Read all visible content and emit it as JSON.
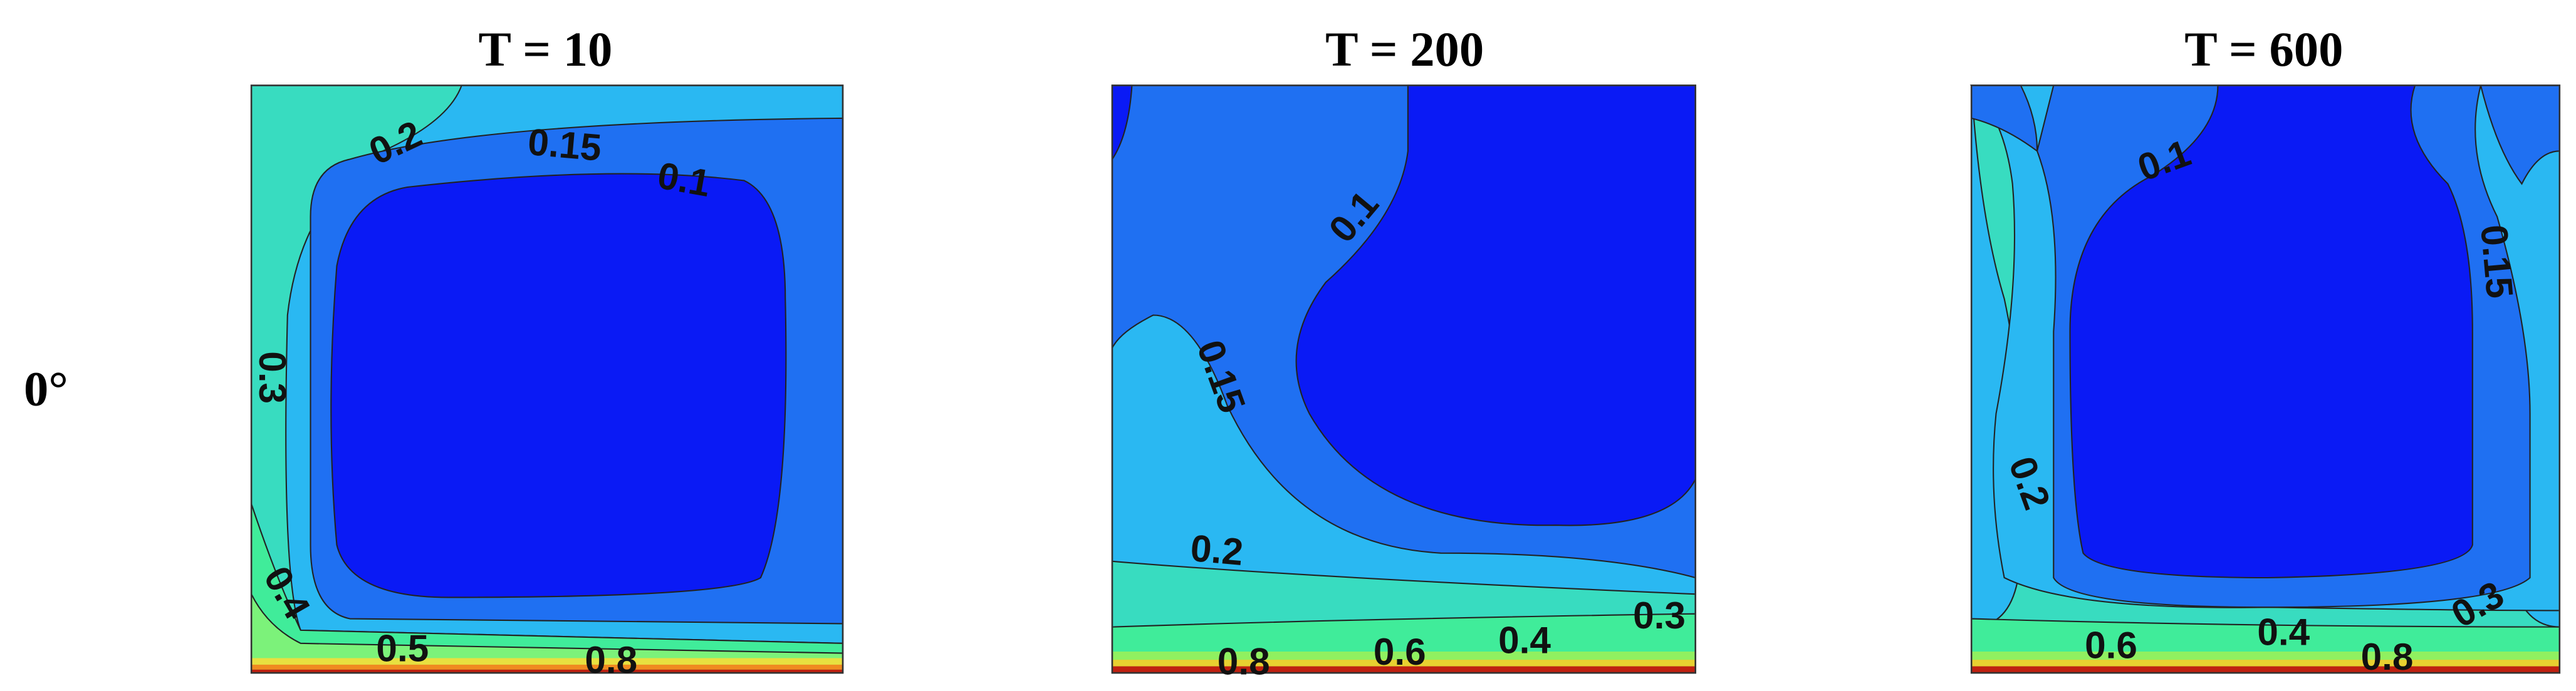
{
  "figure": {
    "row_label": "0°",
    "panels": [
      {
        "title": "T = 10",
        "labels": [
          "0.2",
          "0.15",
          "0.1",
          "0.3",
          "0.4",
          "0.5",
          "0.8"
        ]
      },
      {
        "title": "T = 200",
        "labels": [
          "0.1",
          "0.15",
          "0.2",
          "0.8",
          "0.6",
          "0.4",
          "0.3"
        ]
      },
      {
        "title": "T = 600",
        "labels": [
          "0.1",
          "0.15",
          "0.2",
          "0.6",
          "0.4",
          "0.8",
          "0.3"
        ]
      }
    ]
  }
}
